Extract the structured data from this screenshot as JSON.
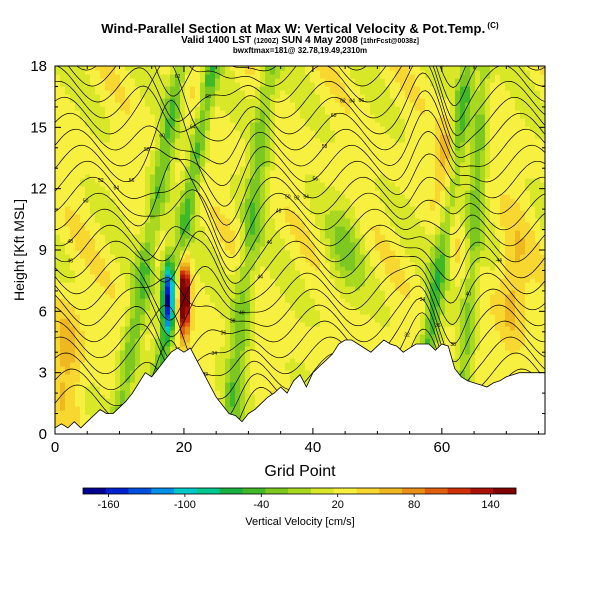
{
  "header": {
    "title": "Wind-Parallel Section at Max W: Vertical Velocity & Pot.Temp.",
    "title_units": "(C)",
    "subtitle_main": "Valid 1400 LST",
    "subtitle_run": "(1200Z)",
    "subtitle_date": "SUN 4 May 2008",
    "subtitle_fcst": "[1thrFcst@0038z]",
    "info": "bwxftmax=181@ 32.78,19.49,2310m"
  },
  "chart_data": {
    "type": "heatmap",
    "xlabel": "Grid Point",
    "ylabel": "Height [Kft MSL]",
    "xlim": [
      0,
      76
    ],
    "ylim": [
      0,
      18
    ],
    "x_ticks": [
      "0",
      "20",
      "40",
      "60"
    ],
    "x_tick_values": [
      0,
      20,
      40,
      60
    ],
    "y_ticks": [
      "0",
      "3",
      "6",
      "9",
      "12",
      "15",
      "18"
    ],
    "y_tick_values": [
      0,
      3,
      6,
      9,
      12,
      15,
      18
    ],
    "colorbar": {
      "label": "Vertical Velocity [cm/s]",
      "range": [
        -180,
        160
      ],
      "tick_labels": [
        "-160",
        "-100",
        "-40",
        "20",
        "80",
        "140"
      ],
      "tick_values": [
        -160,
        -100,
        -40,
        20,
        80,
        140
      ],
      "colors": [
        "#000090",
        "#0020d0",
        "#0050e0",
        "#0090e8",
        "#00c8c8",
        "#00c890",
        "#18b040",
        "#40b828",
        "#7cc820",
        "#a8d820",
        "#d8e828",
        "#f8f040",
        "#f8d830",
        "#f0b820",
        "#e89018",
        "#e06010",
        "#d03008",
        "#a81008",
        "#800000"
      ]
    },
    "terrain_kft": [
      [
        0,
        0.3
      ],
      [
        1,
        0.5
      ],
      [
        2,
        0.3
      ],
      [
        3,
        0.6
      ],
      [
        4,
        0.3
      ],
      [
        5,
        0.6
      ],
      [
        6,
        0.9
      ],
      [
        7,
        1.2
      ],
      [
        8,
        1.0
      ],
      [
        9,
        1.0
      ],
      [
        10,
        1.3
      ],
      [
        11,
        1.6
      ],
      [
        12,
        2.0
      ],
      [
        13,
        2.5
      ],
      [
        14,
        3.0
      ],
      [
        15,
        2.8
      ],
      [
        16,
        3.2
      ],
      [
        17,
        3.6
      ],
      [
        18,
        4.0
      ],
      [
        19,
        4.2
      ],
      [
        20,
        4.0
      ],
      [
        21,
        4.2
      ],
      [
        22,
        3.6
      ],
      [
        23,
        3.0
      ],
      [
        24,
        2.4
      ],
      [
        25,
        1.8
      ],
      [
        26,
        1.4
      ],
      [
        27,
        1.0
      ],
      [
        28,
        0.9
      ],
      [
        29,
        0.6
      ],
      [
        30,
        1.0
      ],
      [
        31,
        1.2
      ],
      [
        32,
        1.5
      ],
      [
        33,
        1.8
      ],
      [
        34,
        2.0
      ],
      [
        35,
        2.3
      ],
      [
        36,
        2.0
      ],
      [
        37,
        2.6
      ],
      [
        38,
        2.9
      ],
      [
        39,
        2.3
      ],
      [
        40,
        3.0
      ],
      [
        41,
        3.3
      ],
      [
        42,
        3.6
      ],
      [
        43,
        3.9
      ],
      [
        44,
        4.4
      ],
      [
        45,
        4.6
      ],
      [
        46,
        4.6
      ],
      [
        47,
        4.4
      ],
      [
        48,
        4.2
      ],
      [
        49,
        4.0
      ],
      [
        50,
        4.3
      ],
      [
        51,
        4.6
      ],
      [
        52,
        4.4
      ],
      [
        53,
        4.3
      ],
      [
        54,
        4.0
      ],
      [
        55,
        4.2
      ],
      [
        56,
        4.4
      ],
      [
        57,
        4.4
      ],
      [
        58,
        4.4
      ],
      [
        59,
        4.1
      ],
      [
        60,
        4.4
      ],
      [
        61,
        4.3
      ],
      [
        62,
        3.2
      ],
      [
        63,
        2.8
      ],
      [
        64,
        2.6
      ],
      [
        65,
        2.5
      ],
      [
        66,
        2.4
      ],
      [
        67,
        2.3
      ],
      [
        68,
        2.5
      ],
      [
        69,
        2.6
      ],
      [
        70,
        2.8
      ],
      [
        71,
        2.9
      ],
      [
        72,
        3.0
      ],
      [
        73,
        3.0
      ],
      [
        74,
        3.0
      ],
      [
        75,
        3.0
      ],
      [
        76,
        3.0
      ]
    ],
    "updraft_max": {
      "x": 20,
      "y": 6.7,
      "value": 150
    },
    "downdraft_min": {
      "x": 17.5,
      "y": 7,
      "value": -150
    },
    "theta_contours_C": [
      26,
      28,
      30,
      32,
      34,
      36,
      38,
      40,
      42,
      44,
      46,
      48,
      50,
      52,
      54,
      56,
      58,
      60,
      62,
      64,
      66,
      68,
      70
    ],
    "contour_labels": [
      "26",
      "28",
      "32",
      "34",
      "36",
      "38",
      "40",
      "44",
      "46",
      "48",
      "50",
      "52",
      "54",
      "56",
      "58",
      "60",
      "62",
      "64",
      "66"
    ],
    "grid": false,
    "legend_placement": "bottom"
  }
}
